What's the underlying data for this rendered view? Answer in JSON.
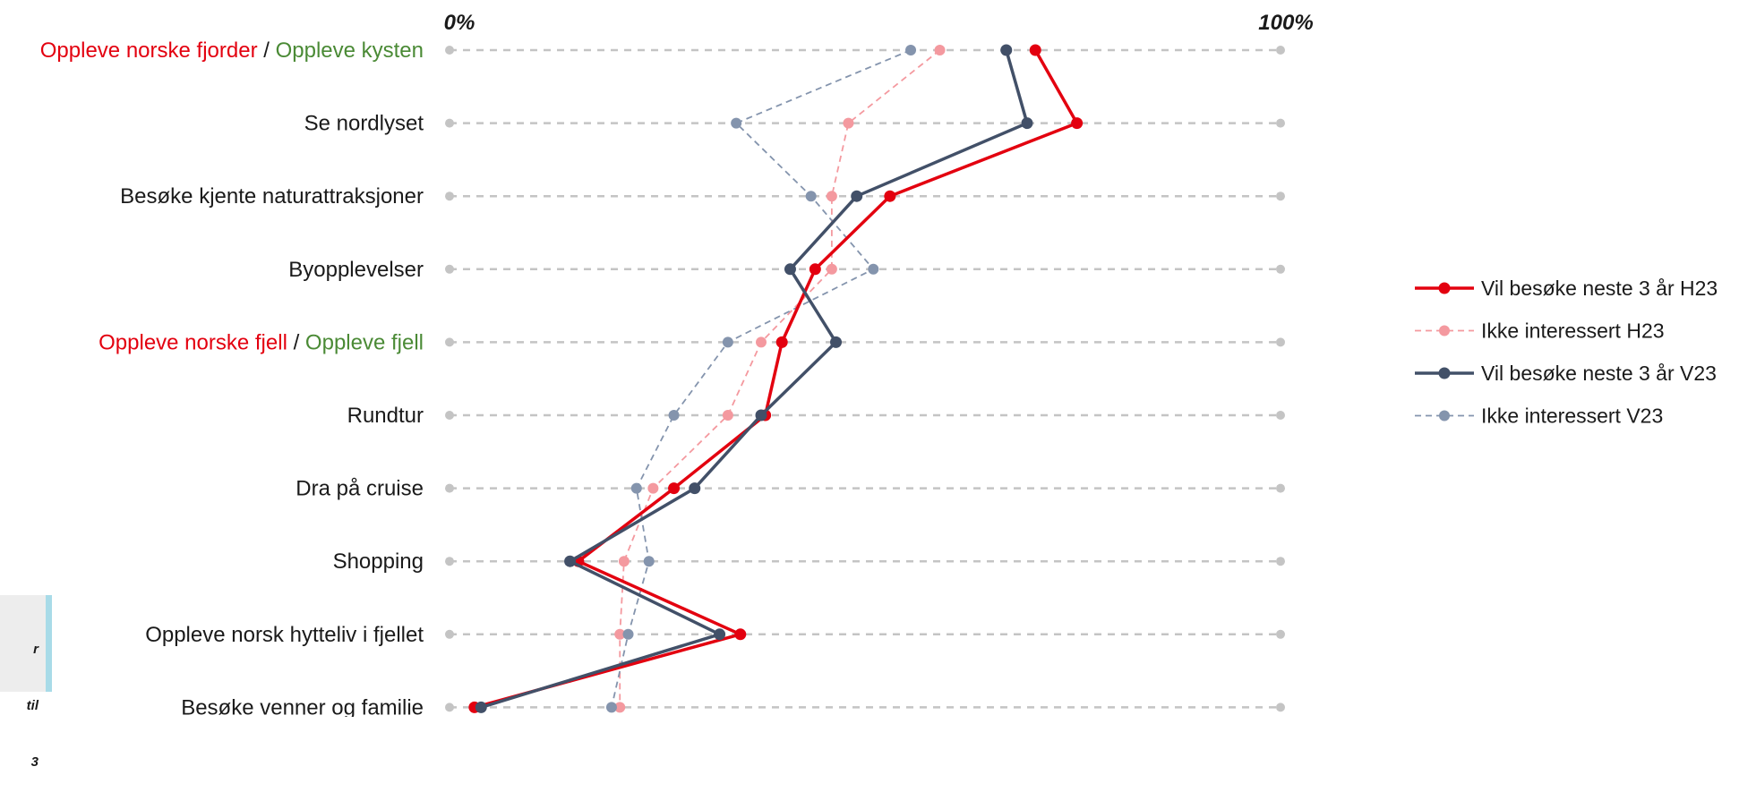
{
  "chart_data": {
    "type": "line",
    "orientation": "horizontal-categories",
    "axis": {
      "min_label": "0%",
      "max_label": "100%",
      "range": [
        0,
        100
      ]
    },
    "categories": [
      {
        "parts": [
          {
            "text": "Oppleve norske fjorder",
            "color": "#e3000f"
          },
          {
            "text": " / ",
            "color": "#1a1a1a"
          },
          {
            "text": "Oppleve kysten",
            "color": "#4a8a35"
          }
        ]
      },
      {
        "parts": [
          {
            "text": "Se nordlyset",
            "color": "#1a1a1a"
          }
        ]
      },
      {
        "parts": [
          {
            "text": "Besøke kjente naturattraksjoner",
            "color": "#1a1a1a"
          }
        ]
      },
      {
        "parts": [
          {
            "text": "Byopplevelser",
            "color": "#1a1a1a"
          }
        ]
      },
      {
        "parts": [
          {
            "text": "Oppleve norske fjell",
            "color": "#e3000f"
          },
          {
            "text": " / ",
            "color": "#1a1a1a"
          },
          {
            "text": "Oppleve fjell",
            "color": "#4a8a35"
          }
        ]
      },
      {
        "parts": [
          {
            "text": "Rundtur",
            "color": "#1a1a1a"
          }
        ]
      },
      {
        "parts": [
          {
            "text": "Dra på cruise",
            "color": "#1a1a1a"
          }
        ]
      },
      {
        "parts": [
          {
            "text": "Shopping",
            "color": "#1a1a1a"
          }
        ]
      },
      {
        "parts": [
          {
            "text": "Oppleve norsk hytteliv i fjellet",
            "color": "#1a1a1a"
          }
        ]
      },
      {
        "parts": [
          {
            "text": "Besøke venner og familie",
            "color": "#1a1a1a"
          }
        ]
      }
    ],
    "series": [
      {
        "name": "Vil besøke neste 3 år H23",
        "color": "#e3000f",
        "style": "solid",
        "values": [
          70.5,
          75.5,
          53,
          44,
          40,
          38,
          27,
          15.5,
          35,
          3
        ]
      },
      {
        "name": "Ikke interessert H23",
        "color": "#f4999f",
        "style": "dashed",
        "values": [
          59,
          48,
          46,
          46,
          37.5,
          33.5,
          24.5,
          21,
          20.5,
          20.5
        ]
      },
      {
        "name": "Vil besøke neste 3 år V23",
        "color": "#425068",
        "style": "solid",
        "values": [
          67,
          69.5,
          49,
          41,
          46.5,
          37.5,
          29.5,
          14.5,
          32.5,
          3.8
        ]
      },
      {
        "name": "Ikke interessert V23",
        "color": "#8494ad",
        "style": "dashed",
        "values": [
          55.5,
          34.5,
          43.5,
          51,
          33.5,
          27,
          22.5,
          24,
          21.5,
          19.5
        ]
      }
    ],
    "grid": true,
    "legend_position": "right"
  },
  "side_note": {
    "lines": [
      "r",
      "til",
      "3"
    ]
  }
}
